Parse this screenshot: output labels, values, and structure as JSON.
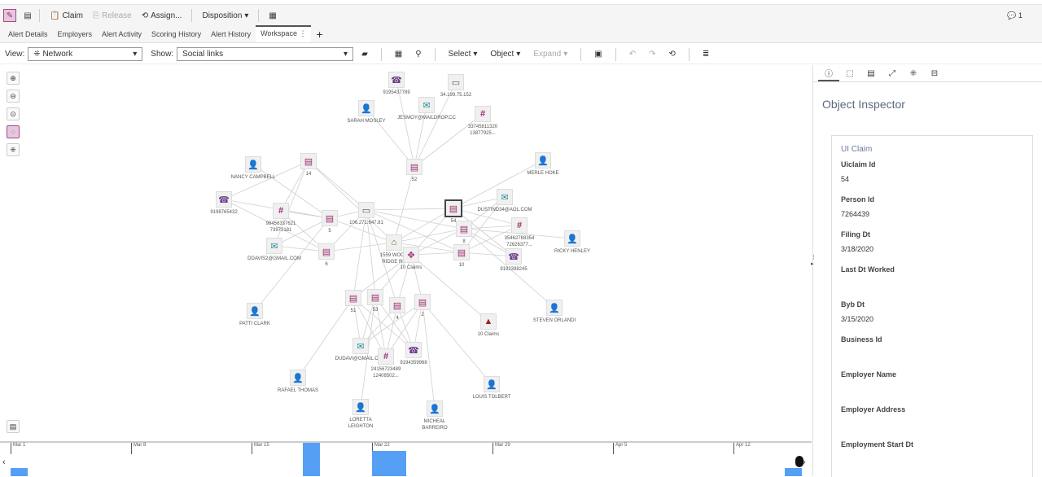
{
  "toolbar": {
    "claim": "Claim",
    "release": "Release",
    "assign": "Assign...",
    "disposition": "Disposition",
    "comments_count": "1"
  },
  "tabs": [
    {
      "label": "Alert Details"
    },
    {
      "label": "Employers"
    },
    {
      "label": "Alert Activity"
    },
    {
      "label": "Scoring History"
    },
    {
      "label": "Alert History"
    },
    {
      "label": "Workspace ⋮",
      "active": true
    }
  ],
  "add_tab": "+",
  "view_bar": {
    "view_label": "View:",
    "view_value": "Network",
    "show_label": "Show:",
    "show_value": "Social links",
    "select": "Select",
    "object": "Object",
    "expand": "Expand"
  },
  "colors": {
    "claim": "#9b2c6e",
    "person": "#2a8f9a",
    "phone": "#6b3a8a",
    "address": "#6a6a20",
    "alert": "#a02020",
    "timeline_bar": "#55a0f5"
  },
  "graph": {
    "nodes": [
      {
        "type": "phone",
        "label": "9195437789"
      },
      {
        "type": "ip",
        "label": "34.199.75.152"
      },
      {
        "type": "person",
        "label": "SARAH MOSLEY"
      },
      {
        "type": "email",
        "label": "JESMOY@MAILDROP.CC"
      },
      {
        "type": "doc",
        "label": "33745811320\n13877925..."
      },
      {
        "type": "claim",
        "label": "14"
      },
      {
        "type": "claim",
        "label": "52"
      },
      {
        "type": "person",
        "label": "NANCY CAMPBELL"
      },
      {
        "type": "person",
        "label": "MERLE HOKE"
      },
      {
        "type": "phone",
        "label": "9198765432"
      },
      {
        "type": "doc",
        "label": "98456337621\n73972181"
      },
      {
        "type": "claim",
        "label": "5"
      },
      {
        "type": "ip",
        "label": "106.271.647.81"
      },
      {
        "type": "claim",
        "label": "54",
        "selected": true
      },
      {
        "type": "email",
        "label": "DUSTIND34@AOL.COM"
      },
      {
        "type": "claim",
        "label": "8"
      },
      {
        "type": "doc",
        "label": "35462788354\n72626377..."
      },
      {
        "type": "person",
        "label": "RICKY HENLEY"
      },
      {
        "type": "email",
        "label": "DDAVIS2@GMAIL.COM"
      },
      {
        "type": "claim",
        "label": "6"
      },
      {
        "type": "address",
        "label": "1559 WOOD\nRIDGE RD"
      },
      {
        "type": "group",
        "label": "10 Claims"
      },
      {
        "type": "claim",
        "label": "10"
      },
      {
        "type": "phone",
        "label": "9192398245"
      },
      {
        "type": "claim",
        "label": "51"
      },
      {
        "type": "claim",
        "label": "53"
      },
      {
        "type": "claim",
        "label": "4"
      },
      {
        "type": "claim",
        "label": "2"
      },
      {
        "type": "person",
        "label": "PATTI CLARK"
      },
      {
        "type": "alert",
        "label": "10 Claims"
      },
      {
        "type": "person",
        "label": "STEVEN ORLANDI"
      },
      {
        "type": "email",
        "label": "DUDAVI@GMAIL.COM"
      },
      {
        "type": "doc",
        "label": "24156723489\n12408502..."
      },
      {
        "type": "phone",
        "label": "9194359968"
      },
      {
        "type": "person",
        "label": "RAFAEL THOMAS"
      },
      {
        "type": "person",
        "label": "LORETTA\nLEIGHTON"
      },
      {
        "type": "person",
        "label": "MICHEAL\nBARREIRO"
      },
      {
        "type": "person",
        "label": "LOUIS TOLBERT"
      }
    ],
    "edges": [
      [
        0,
        6
      ],
      [
        1,
        6
      ],
      [
        2,
        6
      ],
      [
        3,
        6
      ],
      [
        4,
        6
      ],
      [
        7,
        11
      ],
      [
        9,
        5
      ],
      [
        9,
        11
      ],
      [
        9,
        19
      ],
      [
        10,
        5
      ],
      [
        10,
        11
      ],
      [
        10,
        19
      ],
      [
        18,
        11
      ],
      [
        18,
        19
      ],
      [
        18,
        5
      ],
      [
        12,
        5
      ],
      [
        12,
        11
      ],
      [
        12,
        19
      ],
      [
        12,
        13
      ],
      [
        12,
        15
      ],
      [
        12,
        22
      ],
      [
        12,
        24
      ],
      [
        12,
        25
      ],
      [
        12,
        26
      ],
      [
        8,
        13
      ],
      [
        14,
        13
      ],
      [
        14,
        15
      ],
      [
        14,
        22
      ],
      [
        16,
        13
      ],
      [
        16,
        15
      ],
      [
        16,
        22
      ],
      [
        17,
        15
      ],
      [
        23,
        13
      ],
      [
        23,
        22
      ],
      [
        23,
        15
      ],
      [
        20,
        11
      ],
      [
        20,
        19
      ],
      [
        20,
        13
      ],
      [
        20,
        15
      ],
      [
        20,
        22
      ],
      [
        20,
        6
      ],
      [
        21,
        13
      ],
      [
        21,
        15
      ],
      [
        21,
        22
      ],
      [
        21,
        29
      ],
      [
        21,
        24
      ],
      [
        21,
        25
      ],
      [
        21,
        26
      ],
      [
        21,
        27
      ],
      [
        28,
        11
      ],
      [
        30,
        15
      ],
      [
        31,
        24
      ],
      [
        31,
        25
      ],
      [
        31,
        26
      ],
      [
        31,
        27
      ],
      [
        32,
        24
      ],
      [
        32,
        25
      ],
      [
        32,
        26
      ],
      [
        32,
        27
      ],
      [
        33,
        24
      ],
      [
        33,
        25
      ],
      [
        33,
        26
      ],
      [
        33,
        27
      ],
      [
        34,
        24
      ],
      [
        35,
        25
      ],
      [
        36,
        27
      ],
      [
        37,
        27
      ],
      [
        5,
        20
      ]
    ]
  },
  "inspector": {
    "title": "Object Inspector",
    "card_title": "UI Claim",
    "fields": [
      {
        "label": "Uiclaim Id",
        "value": "54"
      },
      {
        "label": "Person Id",
        "value": "7264439"
      },
      {
        "label": "Filing Dt",
        "value": "3/18/2020"
      },
      {
        "label": "Last Dt Worked",
        "value": ""
      },
      {
        "label": "Byb Dt",
        "value": "3/15/2020"
      },
      {
        "label": "Business Id",
        "value": ""
      },
      {
        "label": "Employer Name",
        "value": ""
      },
      {
        "label": "Employer Address",
        "value": ""
      },
      {
        "label": "Employment Start Dt",
        "value": ""
      }
    ]
  },
  "timeline": {
    "ticks": [
      "Mar 1",
      "Mar 8",
      "Mar 15",
      "Mar 22",
      "Mar 29",
      "Apr 5",
      "Apr 12"
    ],
    "bars": [
      {
        "date": "Mar 1",
        "count": 1
      },
      {
        "date": "Mar 18",
        "count": 4
      },
      {
        "date": "Mar 22",
        "count": 3
      },
      {
        "date": "Mar 23",
        "count": 3
      },
      {
        "date": "Apr 15",
        "count": 1
      }
    ]
  }
}
